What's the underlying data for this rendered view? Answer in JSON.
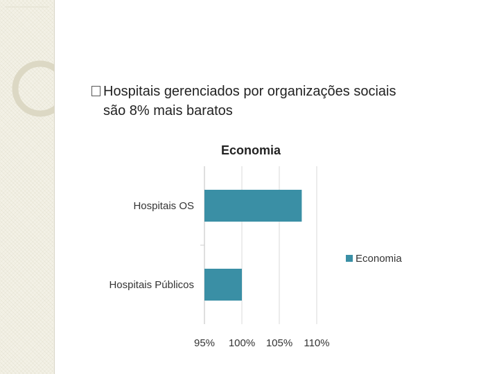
{
  "bullet": {
    "line1": "Hospitais gerenciados por organizações sociais",
    "line2": "são  8% mais baratos"
  },
  "colors": {
    "bar": "#3a8fa5",
    "gridline": "#d9d9d9",
    "panel": "#f3f1e6"
  },
  "chart_data": {
    "type": "bar",
    "orientation": "horizontal",
    "title": "Economia",
    "categories": [
      "Hospitais OS",
      "Hospitais Públicos"
    ],
    "series": [
      {
        "name": "Economia",
        "values": [
          108,
          100
        ]
      }
    ],
    "xlim": [
      95,
      110
    ],
    "xticks": [
      95,
      100,
      105,
      110
    ],
    "xtick_labels": [
      "95%",
      "100%",
      "105%",
      "110%"
    ],
    "grid": true,
    "legend_position": "right"
  }
}
